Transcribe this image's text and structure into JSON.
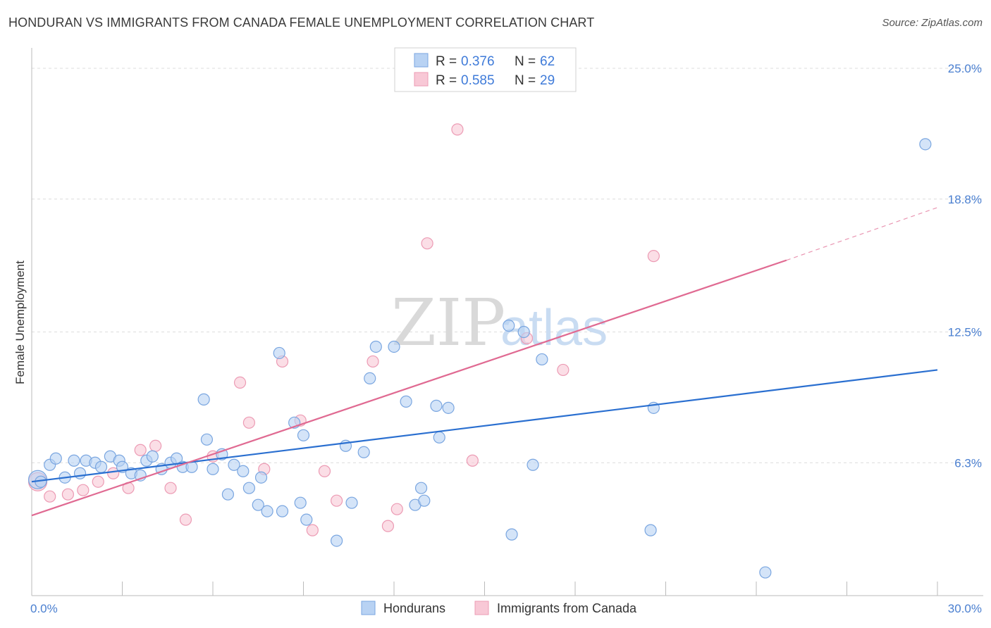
{
  "title": "HONDURAN VS IMMIGRANTS FROM CANADA FEMALE UNEMPLOYMENT CORRELATION CHART",
  "source": "Source: ZipAtlas.com",
  "watermark": {
    "zip": "ZIP",
    "atlas": "atlas"
  },
  "legend": {
    "rows": [
      {
        "r_label": "R =",
        "r_value": "0.376",
        "n_label": "N =",
        "n_value": "62"
      },
      {
        "r_label": "R =",
        "r_value": "0.585",
        "n_label": "N =",
        "n_value": "29"
      }
    ]
  },
  "bottom_legend": [
    "Hondurans",
    "Immigrants from Canada"
  ],
  "chart_data": {
    "type": "scatter",
    "ylabel": "Female Unemployment",
    "xlim": [
      0,
      30
    ],
    "ylim": [
      0,
      25
    ],
    "x_tick_labels": [
      {
        "value": 0,
        "label": "0.0%"
      },
      {
        "value": 30,
        "label": "30.0%"
      }
    ],
    "y_tick_labels": [
      {
        "value": 6.3,
        "label": "6.3%"
      },
      {
        "value": 12.5,
        "label": "12.5%"
      },
      {
        "value": 18.8,
        "label": "18.8%"
      },
      {
        "value": 25.0,
        "label": "25.0%"
      }
    ],
    "y_gridlines": [
      6.3,
      12.5,
      18.8,
      25.0
    ],
    "x_minor_ticks": [
      3,
      6,
      9,
      12,
      15,
      18,
      21,
      24,
      27,
      30
    ],
    "colors": {
      "hondurans_fill": "#b8d2f3",
      "hondurans_stroke": "#7aa6e0",
      "hondurans_line": "#2a6fd0",
      "canada_fill": "#f8c8d6",
      "canada_stroke": "#ec9bb4",
      "canada_line": "#e06a92",
      "grid": "#dcdcdc",
      "axis": "#bbbbbb"
    },
    "series": [
      {
        "name": "Hondurans",
        "points": [
          [
            0.2,
            5.5
          ],
          [
            0.3,
            5.4
          ],
          [
            0.6,
            6.2
          ],
          [
            0.8,
            6.5
          ],
          [
            1.1,
            5.6
          ],
          [
            1.4,
            6.4
          ],
          [
            1.6,
            5.8
          ],
          [
            1.8,
            6.4
          ],
          [
            2.1,
            6.3
          ],
          [
            2.3,
            6.1
          ],
          [
            2.6,
            6.6
          ],
          [
            2.9,
            6.4
          ],
          [
            3.0,
            6.1
          ],
          [
            3.3,
            5.8
          ],
          [
            3.6,
            5.7
          ],
          [
            3.8,
            6.4
          ],
          [
            4.0,
            6.6
          ],
          [
            4.3,
            6.0
          ],
          [
            4.6,
            6.3
          ],
          [
            4.8,
            6.5
          ],
          [
            5.0,
            6.1
          ],
          [
            5.3,
            6.1
          ],
          [
            5.7,
            9.3
          ],
          [
            5.8,
            7.4
          ],
          [
            6.0,
            6.0
          ],
          [
            6.3,
            6.7
          ],
          [
            6.5,
            4.8
          ],
          [
            6.7,
            6.2
          ],
          [
            7.0,
            5.9
          ],
          [
            7.2,
            5.1
          ],
          [
            7.5,
            4.3
          ],
          [
            7.6,
            5.6
          ],
          [
            7.8,
            4.0
          ],
          [
            8.2,
            11.5
          ],
          [
            8.3,
            4.0
          ],
          [
            8.7,
            8.2
          ],
          [
            8.9,
            4.4
          ],
          [
            9.0,
            7.6
          ],
          [
            9.1,
            3.6
          ],
          [
            10.1,
            2.6
          ],
          [
            10.4,
            7.1
          ],
          [
            10.6,
            4.4
          ],
          [
            11.0,
            6.8
          ],
          [
            11.2,
            10.3
          ],
          [
            11.4,
            11.8
          ],
          [
            12.0,
            11.8
          ],
          [
            12.4,
            9.2
          ],
          [
            12.7,
            4.3
          ],
          [
            12.9,
            5.1
          ],
          [
            13.0,
            4.5
          ],
          [
            13.4,
            9.0
          ],
          [
            13.5,
            7.5
          ],
          [
            13.8,
            8.9
          ],
          [
            15.8,
            12.8
          ],
          [
            15.9,
            2.9
          ],
          [
            16.3,
            12.5
          ],
          [
            16.6,
            6.2
          ],
          [
            16.9,
            11.2
          ],
          [
            20.5,
            3.1
          ],
          [
            20.6,
            8.9
          ],
          [
            24.3,
            1.1
          ],
          [
            29.6,
            21.4
          ]
        ]
      },
      {
        "name": "Immigrants from Canada",
        "points": [
          [
            0.2,
            5.4
          ],
          [
            0.6,
            4.7
          ],
          [
            1.2,
            4.8
          ],
          [
            1.7,
            5.0
          ],
          [
            2.2,
            5.4
          ],
          [
            2.7,
            5.8
          ],
          [
            3.2,
            5.1
          ],
          [
            3.6,
            6.9
          ],
          [
            4.1,
            7.1
          ],
          [
            4.6,
            5.1
          ],
          [
            5.1,
            3.6
          ],
          [
            6.0,
            6.6
          ],
          [
            6.9,
            10.1
          ],
          [
            7.2,
            8.2
          ],
          [
            7.7,
            6.0
          ],
          [
            8.3,
            11.1
          ],
          [
            8.9,
            8.3
          ],
          [
            9.3,
            3.1
          ],
          [
            9.7,
            5.9
          ],
          [
            10.1,
            4.5
          ],
          [
            11.3,
            11.1
          ],
          [
            11.8,
            3.3
          ],
          [
            12.1,
            4.1
          ],
          [
            13.1,
            16.7
          ],
          [
            14.1,
            22.1
          ],
          [
            14.6,
            6.4
          ],
          [
            16.4,
            12.2
          ],
          [
            17.6,
            10.7
          ],
          [
            20.6,
            16.1
          ]
        ]
      }
    ],
    "trend_lines": [
      {
        "series": "Hondurans",
        "x": [
          0,
          30
        ],
        "y": [
          5.4,
          10.7
        ]
      },
      {
        "series": "Immigrants from Canada",
        "x": [
          0,
          25
        ],
        "y": [
          3.8,
          15.9
        ],
        "dashed_extension": {
          "x": [
            25,
            30
          ],
          "y": [
            15.9,
            18.4
          ]
        }
      }
    ]
  }
}
